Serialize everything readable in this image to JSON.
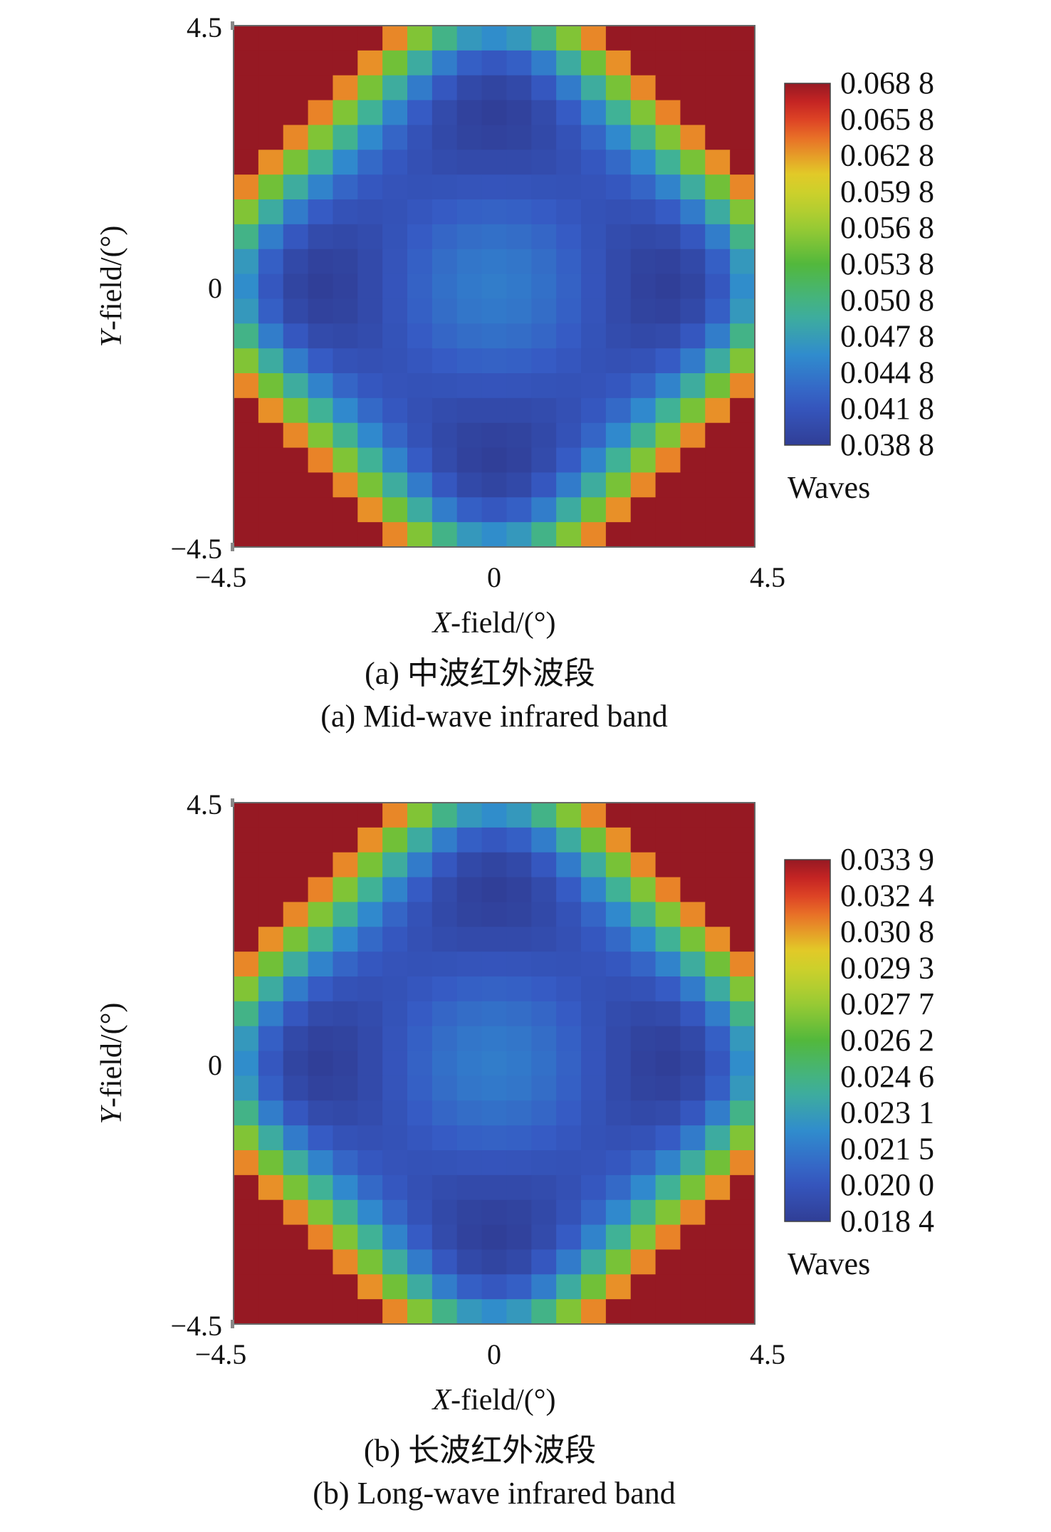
{
  "chart_data": [
    {
      "type": "heatmap",
      "xlabel_italic": "X",
      "xlabel_rest": "-field/(°)",
      "ylabel_italic": "Y",
      "ylabel_rest": "-field/(°)",
      "xlim": [
        -4.5,
        4.5
      ],
      "ylim": [
        -4.5,
        4.5
      ],
      "x_ticks": [
        "−4.5",
        "0",
        "4.5"
      ],
      "y_ticks": [
        "4.5",
        "0",
        "−4.5"
      ],
      "grid_size": 21,
      "value_min": 0.0388,
      "value_max": 0.0688,
      "colorbar_ticks": [
        "0.068 8",
        "0.065 8",
        "0.062 8",
        "0.059 8",
        "0.056 8",
        "0.053 8",
        "0.050 8",
        "0.047 8",
        "0.044 8",
        "0.041 8",
        "0.038 8"
      ],
      "colorbar_unit": "Waves",
      "caption_cn": "(a) 中波红外波段",
      "caption_en": "(a) Mid-wave infrared band"
    },
    {
      "type": "heatmap",
      "xlabel_italic": "X",
      "xlabel_rest": "-field/(°)",
      "ylabel_italic": "Y",
      "ylabel_rest": "-field/(°)",
      "xlim": [
        -4.5,
        4.5
      ],
      "ylim": [
        -4.5,
        4.5
      ],
      "x_ticks": [
        "−4.5",
        "0",
        "4.5"
      ],
      "y_ticks": [
        "4.5",
        "0",
        "−4.5"
      ],
      "grid_size": 21,
      "value_min": 0.0184,
      "value_max": 0.0339,
      "colorbar_ticks": [
        "0.033 9",
        "0.032 4",
        "0.030 8",
        "0.029 3",
        "0.027 7",
        "0.026 2",
        "0.024 6",
        "0.023 1",
        "0.021 5",
        "0.020 0",
        "0.018 4"
      ],
      "colorbar_unit": "Waves",
      "caption_cn": "(b) 长波红外波段",
      "caption_en": "(b) Long-wave infrared band"
    }
  ]
}
